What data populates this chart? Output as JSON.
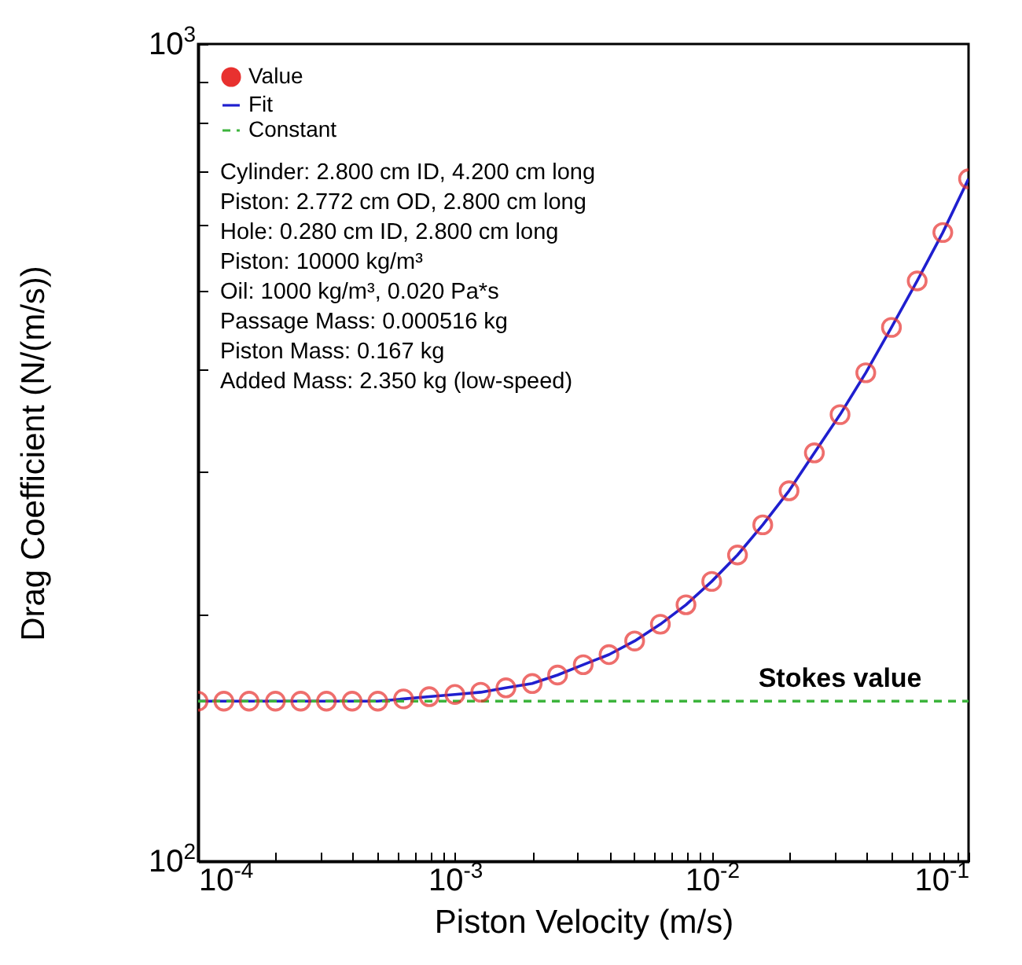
{
  "chart_data": {
    "type": "scatter",
    "xlabel": "Piston Velocity (m/s)",
    "ylabel": "Drag Coefficient (N/(m/s))",
    "log": "xy",
    "grid": false,
    "legend": "top left",
    "xlim": [
      0.0001,
      0.1
    ],
    "ylim": [
      100,
      1000
    ],
    "xticks": [
      {
        "value": 0.0001,
        "label": "10$^{-4}$"
      },
      {
        "value": 0.0002,
        "label": null
      },
      {
        "value": 0.0003,
        "label": null
      },
      {
        "value": 0.0004,
        "label": null
      },
      {
        "value": 0.0005,
        "label": null
      },
      {
        "value": 0.0006,
        "label": null
      },
      {
        "value": 0.0007,
        "label": null
      },
      {
        "value": 0.0008,
        "label": null
      },
      {
        "value": 0.0009,
        "label": null
      },
      {
        "value": 0.001,
        "label": "10$^{-3}$"
      },
      {
        "value": 0.002,
        "label": null
      },
      {
        "value": 0.003,
        "label": null
      },
      {
        "value": 0.004,
        "label": null
      },
      {
        "value": 0.005,
        "label": null
      },
      {
        "value": 0.006,
        "label": null
      },
      {
        "value": 0.007,
        "label": null
      },
      {
        "value": 0.008,
        "label": null
      },
      {
        "value": 0.009,
        "label": null
      },
      {
        "value": 0.01,
        "label": "10$^{-2}$"
      },
      {
        "value": 0.02,
        "label": null
      },
      {
        "value": 0.03,
        "label": null
      },
      {
        "value": 0.04,
        "label": null
      },
      {
        "value": 0.05,
        "label": null
      },
      {
        "value": 0.06,
        "label": null
      },
      {
        "value": 0.07,
        "label": null
      },
      {
        "value": 0.08,
        "label": null
      },
      {
        "value": 0.09,
        "label": null
      },
      {
        "value": 0.1,
        "label": "10$^{-1}$"
      }
    ],
    "yticks": [
      {
        "value": 100,
        "label": "10$^{2}$"
      },
      {
        "value": 200,
        "label": null
      },
      {
        "value": 300,
        "label": null
      },
      {
        "value": 400,
        "label": null
      },
      {
        "value": 500,
        "label": null
      },
      {
        "value": 600,
        "label": null
      },
      {
        "value": 700,
        "label": null
      },
      {
        "value": 800,
        "label": null
      },
      {
        "value": 900,
        "label": null
      },
      {
        "value": 1000,
        "label": "10$^{3}$"
      }
    ],
    "x": [
      0.0001,
      0.000126,
      0.000158,
      0.0002,
      0.000251,
      0.000316,
      0.000398,
      0.000501,
      0.000631,
      0.000794,
      0.001,
      0.00126,
      0.00158,
      0.002,
      0.00251,
      0.00316,
      0.00398,
      0.00501,
      0.00631,
      0.00794,
      0.01,
      0.0126,
      0.0158,
      0.02,
      0.0251,
      0.0316,
      0.0398,
      0.0501,
      0.0631,
      0.0794,
      0.1
    ],
    "series": [
      {
        "name": "Value",
        "type": "scatter",
        "marker": "circle",
        "color": "#e8312f",
        "values": [
          157,
          157,
          157,
          157,
          157,
          157,
          157,
          157,
          158,
          159,
          160,
          161,
          163,
          165,
          169,
          174,
          179,
          186,
          195,
          206,
          220,
          237,
          258,
          284,
          316,
          352,
          396,
          450,
          513,
          588,
          684
        ]
      },
      {
        "name": "Fit",
        "type": "line",
        "line_style": "solid",
        "color": "#1f1fcf",
        "values": [
          157,
          157,
          157,
          157,
          157,
          157,
          157,
          157,
          158,
          159,
          160,
          161,
          163,
          165,
          169,
          174,
          179,
          186,
          195,
          206,
          220,
          237,
          258,
          284,
          316,
          352,
          396,
          450,
          513,
          588,
          684
        ]
      },
      {
        "name": "Constant",
        "type": "line",
        "line_style": "dashed",
        "color": "#3cb43c",
        "x": [
          0.0001,
          0.1
        ],
        "values": [
          157,
          157
        ]
      }
    ],
    "annotations": [
      "Cylinder: 2.800 cm ID, 4.200 cm long",
      "Piston: 2.772 cm OD, 2.800 cm long",
      "Hole: 0.280 cm ID, 2.800 cm long",
      "Piston: 10000 kg/m³",
      "Oil: 1000 kg/m³, 0.020 Pa*s",
      "Passage Mass: 0.000516 kg",
      "Piston Mass: 0.167 kg",
      "Added Mass: 2.350 kg (low-speed)",
      {
        "text": "Stokes value",
        "x": 0.0316,
        "y": 157
      }
    ]
  }
}
